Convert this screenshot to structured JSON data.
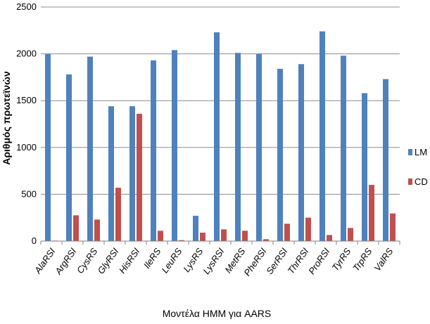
{
  "chart_data": {
    "type": "bar",
    "title": "",
    "xlabel": "Μοντέλα HMM για AARS",
    "ylabel": "Αριθμός πρωτεϊνών",
    "ylim": [
      0,
      2500
    ],
    "yticks": [
      0,
      500,
      1000,
      1500,
      2000,
      2500
    ],
    "grid": true,
    "legend_position": "right",
    "categories": [
      "AlaRSI",
      "ArgRSI",
      "CysRS",
      "GlyRSI",
      "HisRSI",
      "IleRS",
      "LeuRS",
      "LysRS",
      "LysRSI",
      "MetRS",
      "PheRSI",
      "SerRSI",
      "ThrRSI",
      "ProRSI",
      "TyrRS",
      "TrpRS",
      "ValRS"
    ],
    "series": [
      {
        "name": "LM",
        "color": "#4F81BD",
        "values": [
          2000,
          1780,
          1970,
          1440,
          1440,
          1930,
          2040,
          270,
          2230,
          2010,
          2000,
          1840,
          1890,
          2240,
          1980,
          1580,
          1730
        ]
      },
      {
        "name": "CD",
        "color": "#C0504D",
        "values": [
          5,
          275,
          230,
          570,
          1360,
          110,
          10,
          90,
          125,
          110,
          20,
          185,
          250,
          65,
          140,
          600,
          295
        ]
      }
    ]
  }
}
